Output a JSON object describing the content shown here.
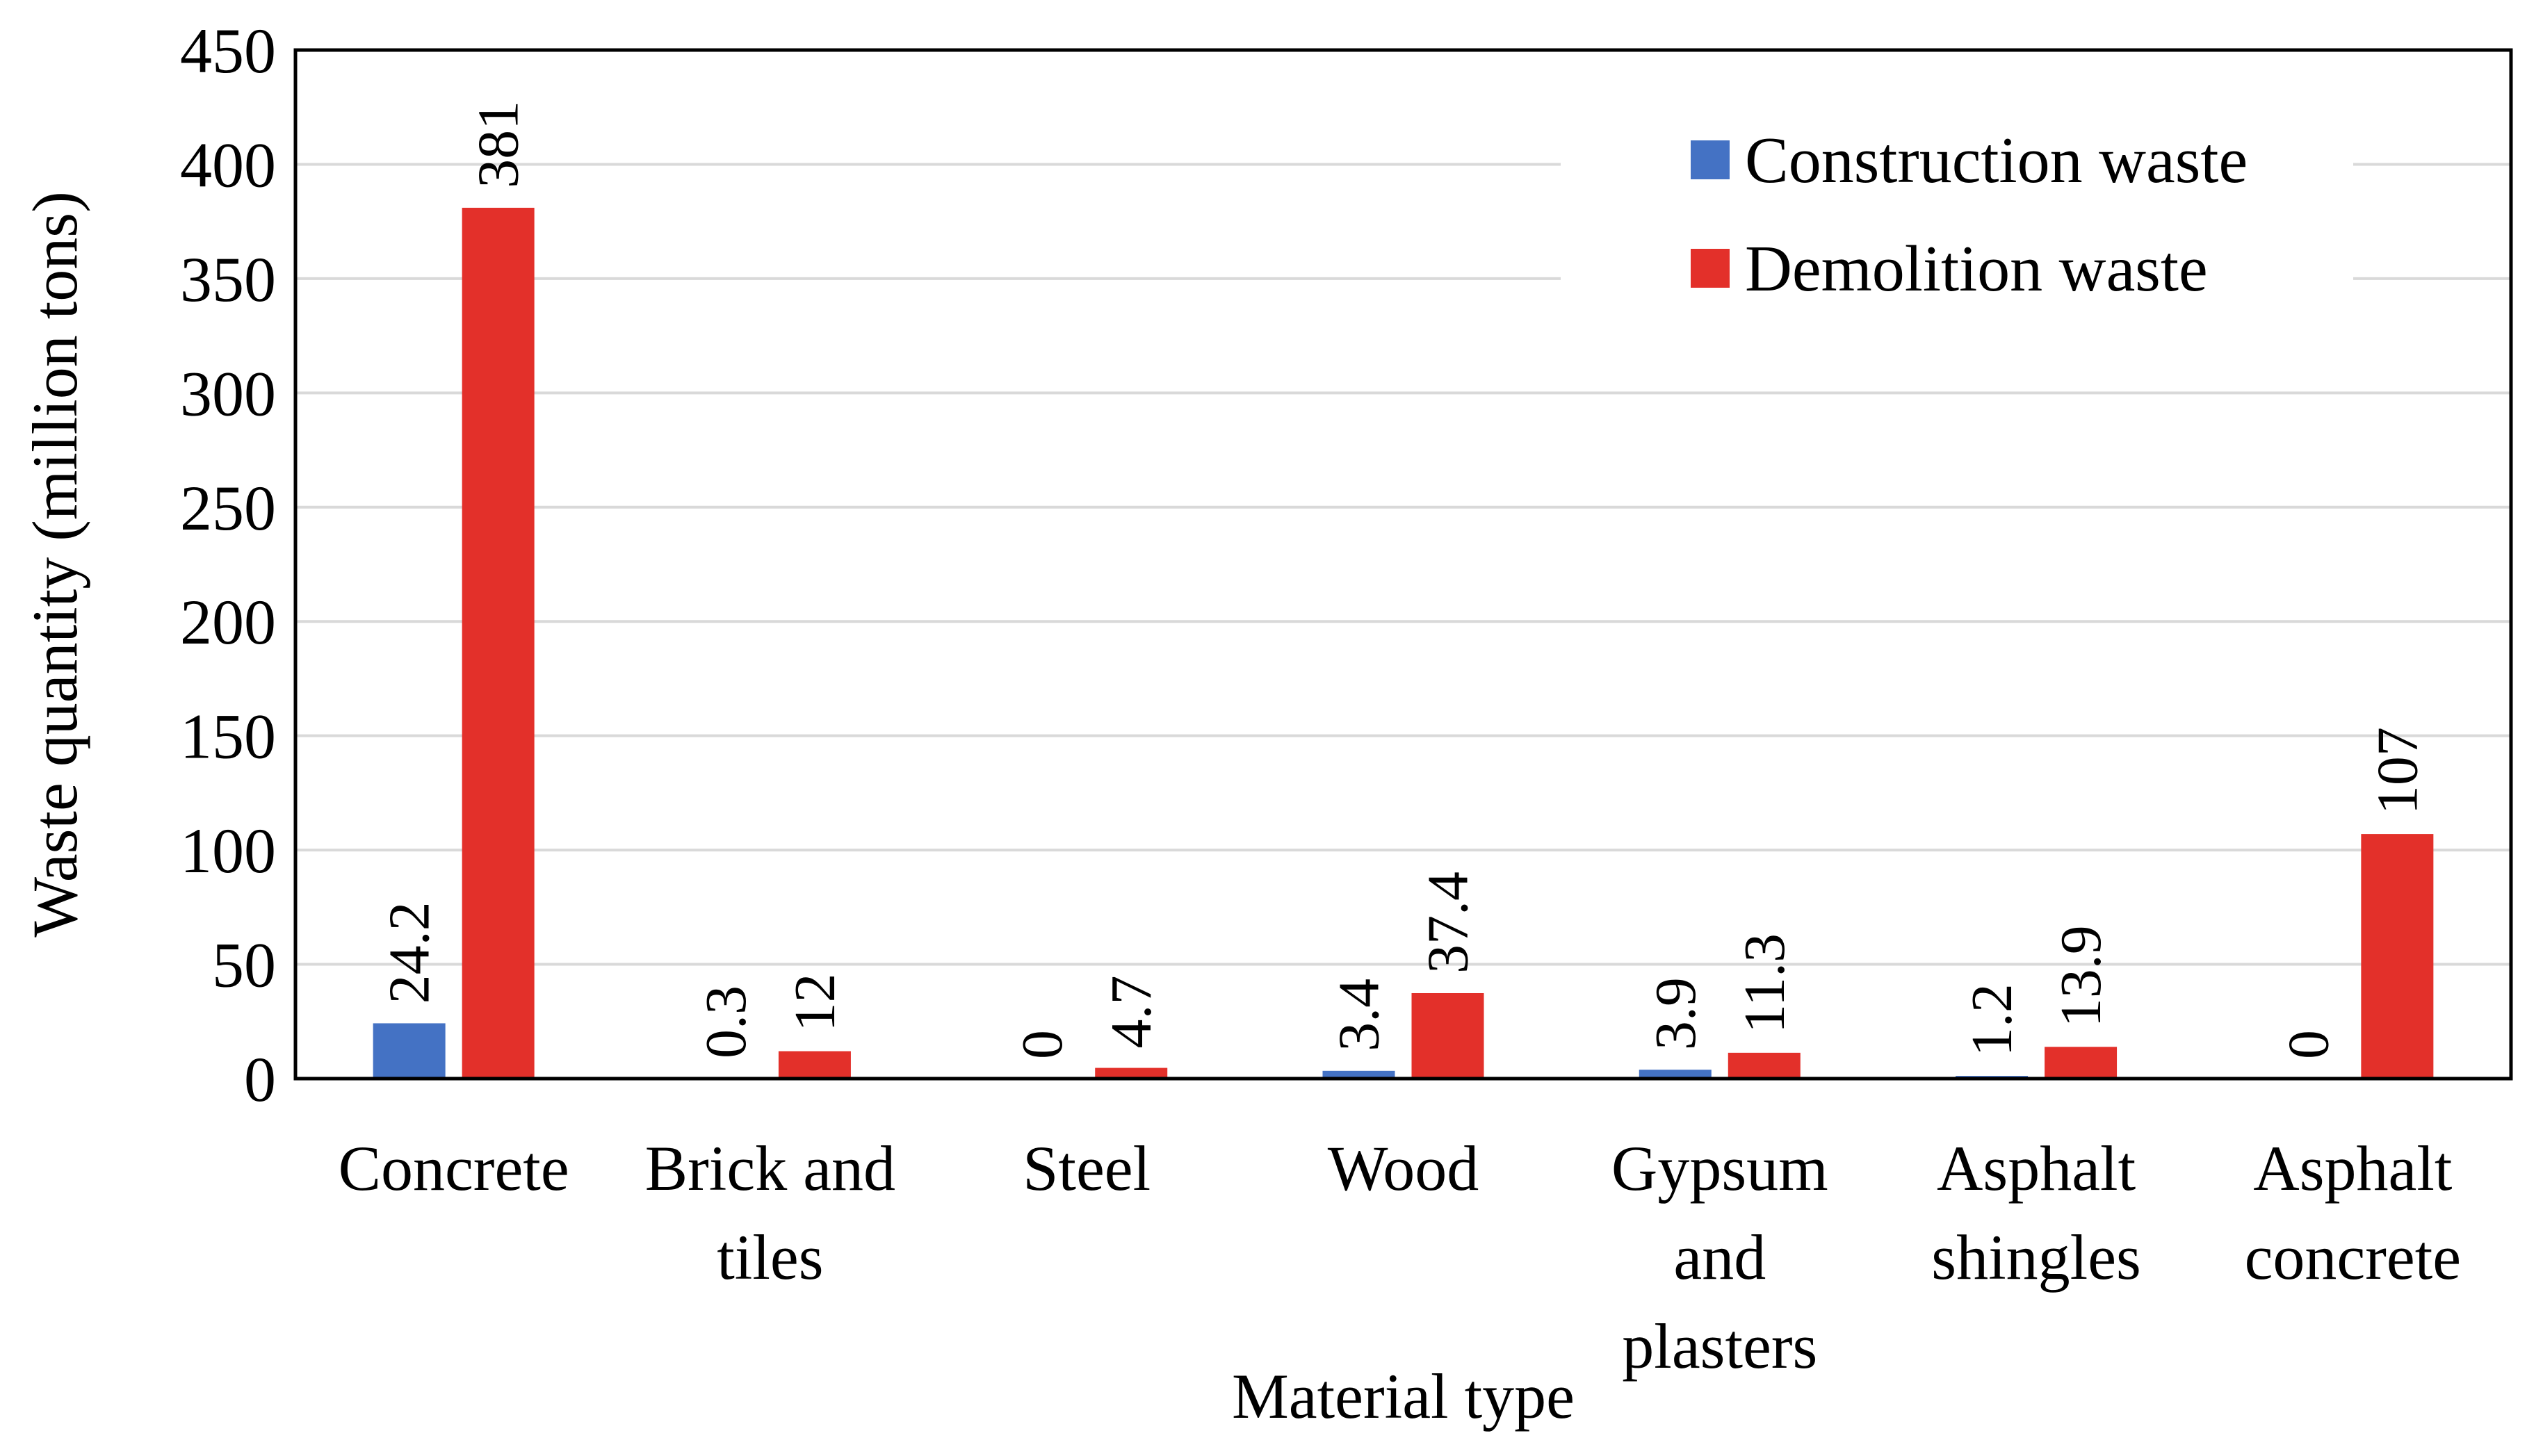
{
  "chart_data": {
    "type": "bar",
    "title": "",
    "xlabel": "Material type",
    "ylabel": "Waste quantity (million tons)",
    "ylim": [
      0,
      450
    ],
    "yticks": [
      0,
      50,
      100,
      150,
      200,
      250,
      300,
      350,
      400,
      450
    ],
    "grid": true,
    "legend_position": "top-right",
    "categories": [
      [
        "Concrete"
      ],
      [
        "Brick and",
        "tiles"
      ],
      [
        "Steel"
      ],
      [
        "Wood"
      ],
      [
        "Gypsum",
        "and",
        "plasters"
      ],
      [
        "Asphalt",
        "shingles"
      ],
      [
        "Asphalt",
        "concrete"
      ]
    ],
    "series": [
      {
        "name": "Construction waste",
        "color": "#4472C4",
        "values": [
          24.2,
          0.3,
          0,
          3.4,
          3.9,
          1.2,
          0
        ],
        "labels": [
          "24.2",
          "0.3",
          "0",
          "3.4",
          "3.9",
          "1.2",
          "0"
        ]
      },
      {
        "name": "Demolition waste",
        "color": "#E3302A",
        "values": [
          381,
          12,
          4.7,
          37.4,
          11.3,
          13.9,
          107
        ],
        "labels": [
          "381",
          "12",
          "4.7",
          "37.4",
          "11.3",
          "13.9",
          "107"
        ]
      }
    ]
  }
}
